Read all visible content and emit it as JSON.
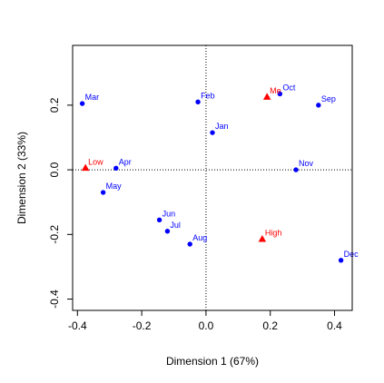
{
  "chart_data": {
    "type": "scatter",
    "title": "",
    "xlabel": "Dimension 1 (67%)",
    "ylabel": "Dimension 2 (33%)",
    "xlim": [
      -0.415,
      0.455
    ],
    "ylim": [
      -0.435,
      0.385
    ],
    "x_ticks": [
      -0.4,
      -0.2,
      0.0,
      0.2,
      0.4
    ],
    "x_tick_labels": [
      "-0.4",
      "-0.2",
      "0.0",
      "0.2",
      "0.4"
    ],
    "y_ticks": [
      -0.4,
      -0.2,
      0.0,
      0.2
    ],
    "y_tick_labels": [
      "-0.4",
      "-0.2",
      "0.0",
      "0.2"
    ],
    "grid": false,
    "reference_lines": {
      "x": 0,
      "y": 0,
      "style": "dotted"
    },
    "colors": {
      "months": "#0000ff",
      "levels": "#ff0000",
      "axes": "#000000"
    },
    "series": [
      {
        "marker": "circle",
        "color": "#0000ff",
        "points": [
          {
            "label": "Jan",
            "x": 0.02,
            "y": 0.115
          },
          {
            "label": "Feb",
            "x": -0.025,
            "y": 0.21
          },
          {
            "label": "Mar",
            "x": -0.385,
            "y": 0.205
          },
          {
            "label": "Apr",
            "x": -0.28,
            "y": 0.005
          },
          {
            "label": "May",
            "x": -0.32,
            "y": -0.07
          },
          {
            "label": "Jun",
            "x": -0.145,
            "y": -0.155
          },
          {
            "label": "Jul",
            "x": -0.12,
            "y": -0.19
          },
          {
            "label": "Aug",
            "x": -0.05,
            "y": -0.23
          },
          {
            "label": "Sep",
            "x": 0.35,
            "y": 0.2
          },
          {
            "label": "Oct",
            "x": 0.23,
            "y": 0.235
          },
          {
            "label": "Nov",
            "x": 0.28,
            "y": 0.0
          },
          {
            "label": "Dec",
            "x": 0.42,
            "y": -0.28
          }
        ]
      },
      {
        "marker": "triangle",
        "color": "#ff0000",
        "points": [
          {
            "label": "Low",
            "x": -0.375,
            "y": 0.005
          },
          {
            "label": "Me",
            "x": 0.19,
            "y": 0.225
          },
          {
            "label": "High",
            "x": 0.175,
            "y": -0.215
          }
        ]
      }
    ]
  }
}
